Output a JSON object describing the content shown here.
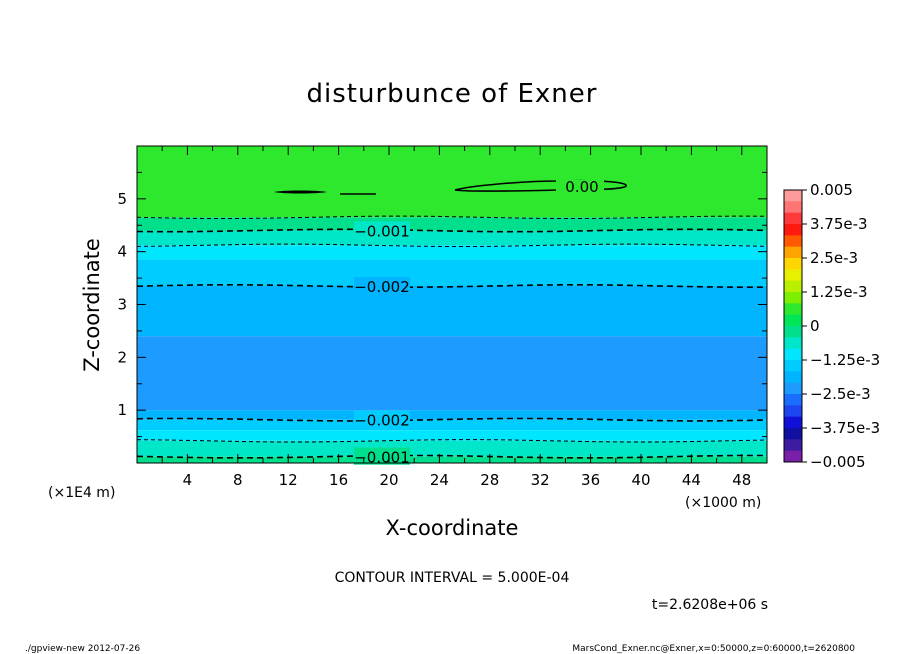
{
  "chart_data": {
    "type": "contour",
    "title": "disturbunce of Exner",
    "xlabel": "X-coordinate",
    "ylabel": "Z-coordinate",
    "x_ticks": [
      "4",
      "8",
      "12",
      "16",
      "20",
      "24",
      "28",
      "32",
      "36",
      "40",
      "44",
      "48"
    ],
    "x_tick_values": [
      4,
      8,
      12,
      16,
      20,
      24,
      28,
      32,
      36,
      40,
      44,
      48
    ],
    "x_units": "(×1000 m)",
    "y_ticks": [
      "1",
      "2",
      "3",
      "4",
      "5"
    ],
    "y_tick_values": [
      1,
      2,
      3,
      4,
      5
    ],
    "y_units": "(×1E4 m)",
    "xlim": [
      0,
      50
    ],
    "ylim": [
      0,
      6
    ],
    "contour_interval": "CONTOUR INTERVAL = 5.000E-04",
    "time_label": "t=2.6208e+06 s",
    "footer_left": "./gpview-new   2012-07-26",
    "footer_right": "MarsCond_Exner.nc@Exner,x=0:50000,z=0:60000,t=2620800",
    "colorbar": {
      "labels": [
        "0.005",
        "3.75e-3",
        "2.5e-3",
        "1.25e-3",
        "0",
        "−1.25e-3",
        "−2.5e-3",
        "−3.75e-3",
        "−0.005"
      ],
      "colors": [
        "#ff9a9a",
        "#ff7474",
        "#ff3a3a",
        "#ff1a10",
        "#ff5a00",
        "#ffa500",
        "#ffd700",
        "#e8f000",
        "#b8f000",
        "#7cf000",
        "#2ee82e",
        "#00e656",
        "#00e08c",
        "#00e6c8",
        "#00e6ff",
        "#00ccff",
        "#00b4ff",
        "#1e9bff",
        "#1a6eff",
        "#1e46f0",
        "#1010d8",
        "#1010a0",
        "#3c1ca0",
        "#7a20a8"
      ]
    },
    "bands": [
      {
        "z0": 4.65,
        "z1": 6.0,
        "color": "#2ee82e"
      },
      {
        "z0": 4.4,
        "z1": 4.65,
        "color": "#00e08c"
      },
      {
        "z0": 4.12,
        "z1": 4.4,
        "color": "#00e6c8"
      },
      {
        "z0": 3.85,
        "z1": 4.12,
        "color": "#00e6ff"
      },
      {
        "z0": 3.35,
        "z1": 3.85,
        "color": "#00ccff"
      },
      {
        "z0": 2.4,
        "z1": 3.35,
        "color": "#00b4ff"
      },
      {
        "z0": 1.0,
        "z1": 2.4,
        "color": "#1e9bff"
      },
      {
        "z0": 0.82,
        "z1": 1.0,
        "color": "#00b4ff"
      },
      {
        "z0": 0.62,
        "z1": 0.82,
        "color": "#00ccff"
      },
      {
        "z0": 0.42,
        "z1": 0.62,
        "color": "#00e6ff"
      },
      {
        "z0": 0.12,
        "z1": 0.42,
        "color": "#00e6c8"
      },
      {
        "z0": 0.0,
        "z1": 0.12,
        "color": "#00e08c"
      }
    ],
    "contours": [
      {
        "z": 4.65,
        "label": null
      },
      {
        "z": 4.4,
        "label": "−0.001"
      },
      {
        "z": 4.12,
        "label": null
      },
      {
        "z": 3.35,
        "label": "−0.002"
      },
      {
        "z": 0.82,
        "label": "−0.002"
      },
      {
        "z": 0.42,
        "label": null
      },
      {
        "z": 0.12,
        "label": "−0.001"
      }
    ],
    "zero_contour_label": "0.00"
  }
}
